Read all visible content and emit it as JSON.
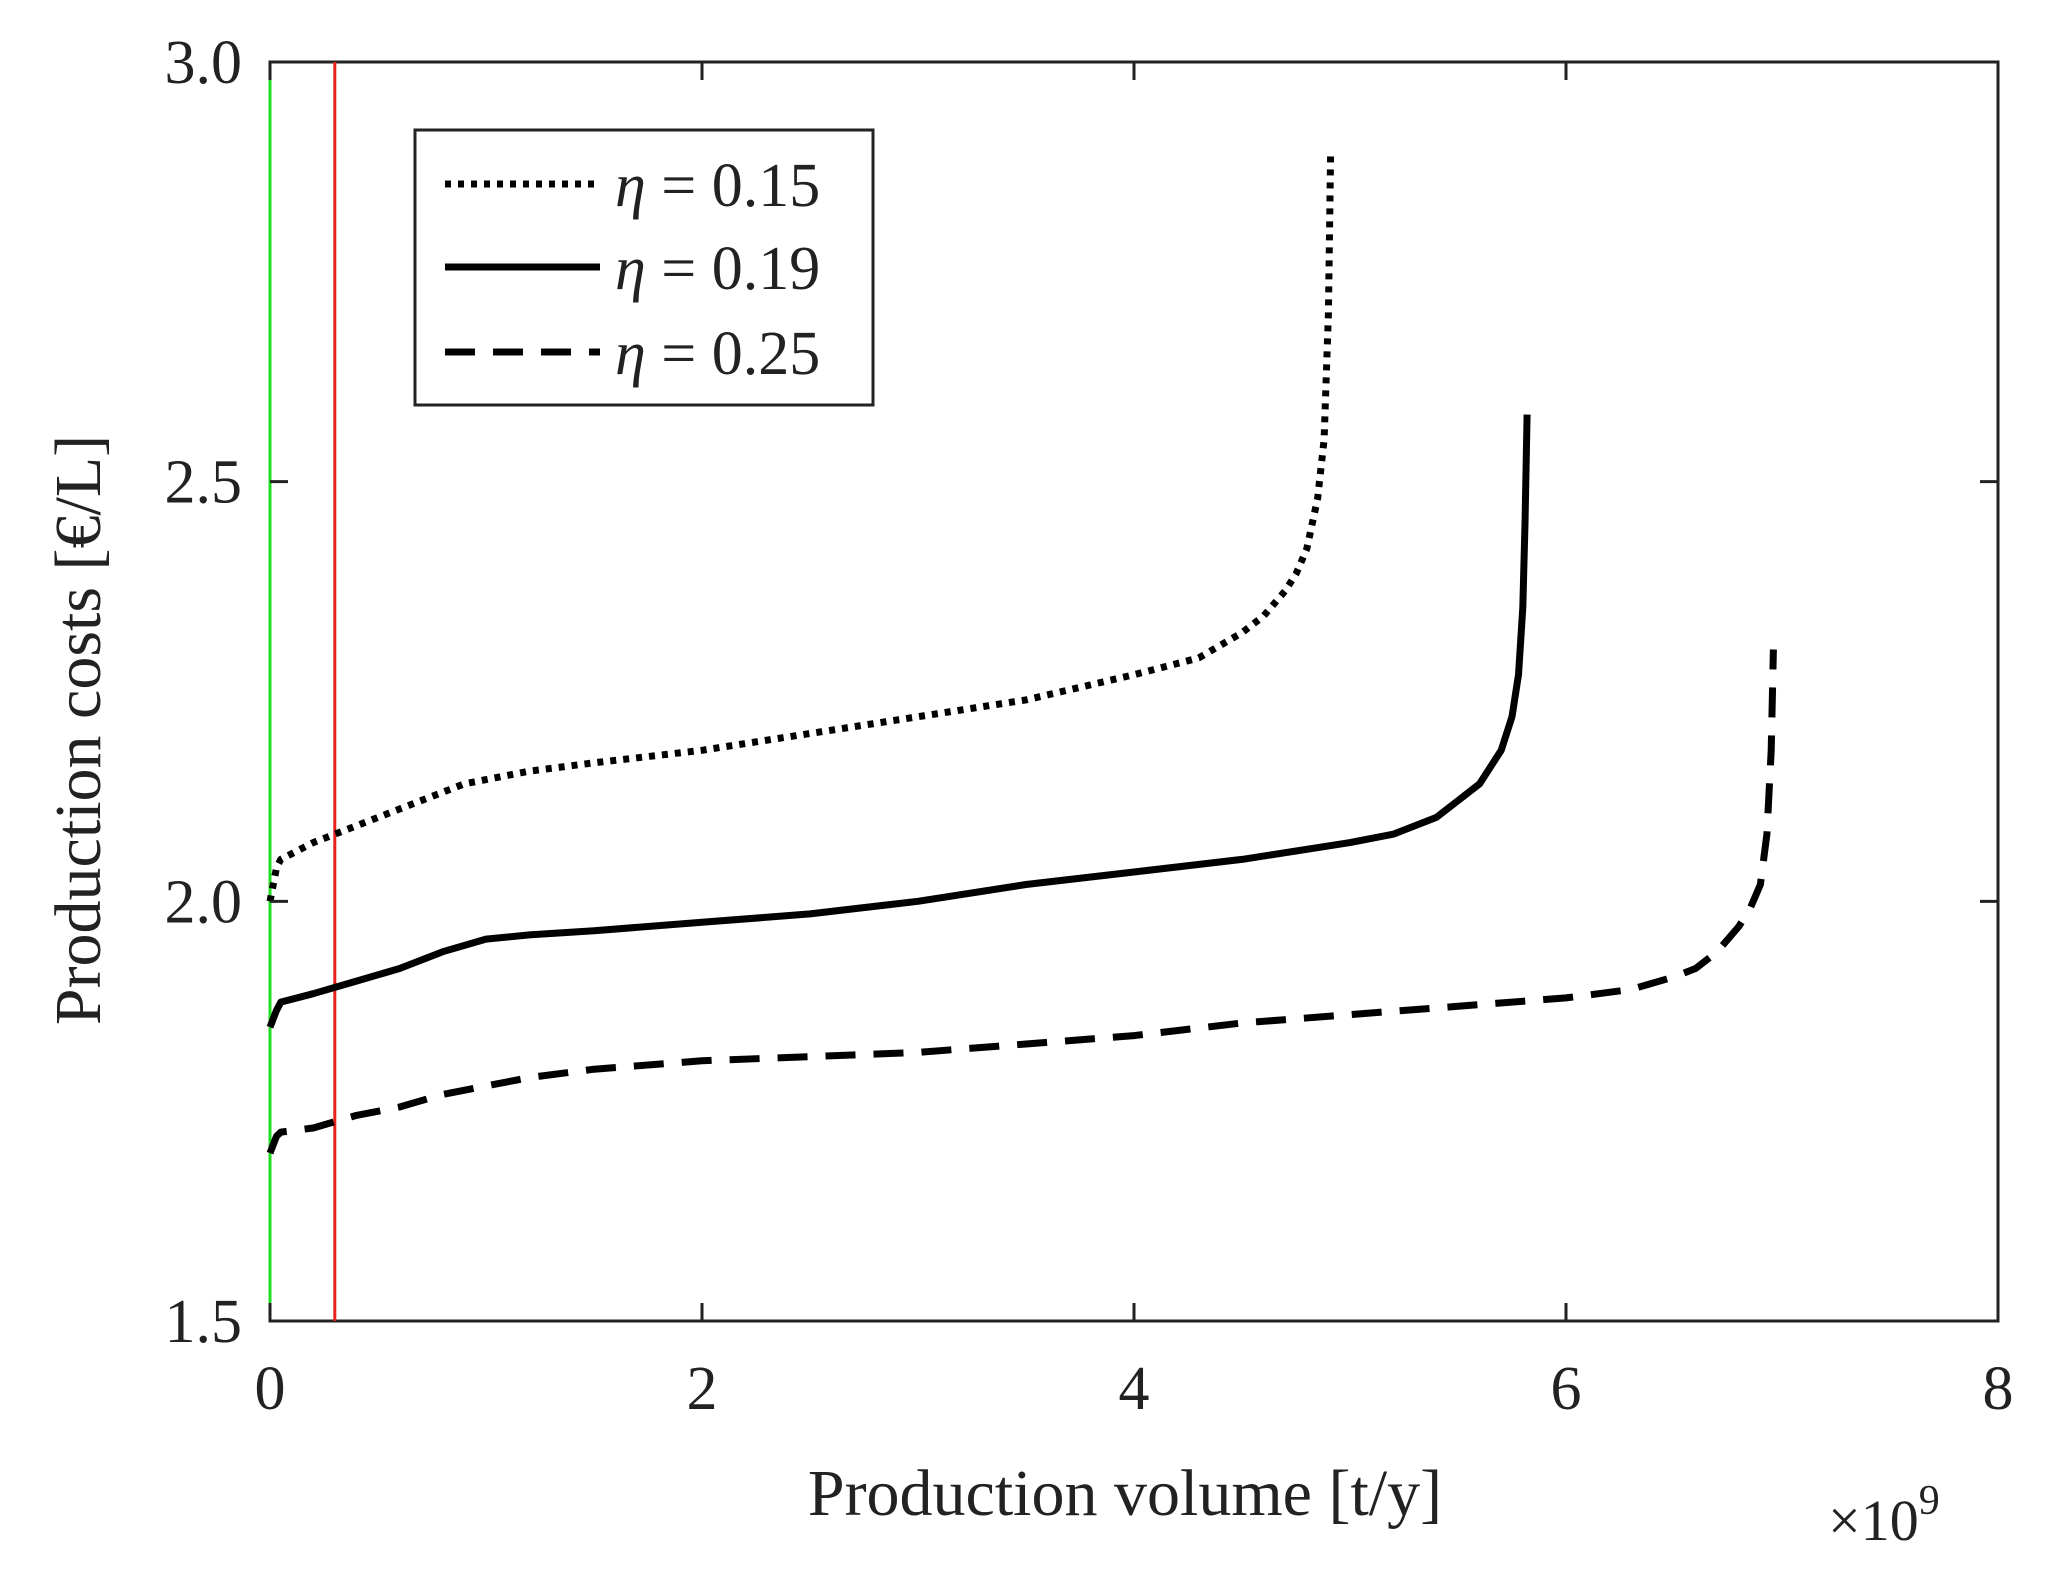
{
  "chart_data": {
    "type": "line",
    "title": "",
    "xlabel": "Production volume [t/y]",
    "ylabel": "Production costs [€/L]",
    "x_multiplier_label": "×10",
    "x_multiplier_exponent": "9",
    "xlim": [
      0,
      8
    ],
    "ylim": [
      1.5,
      3.0
    ],
    "x_ticks": [
      0,
      2,
      4,
      6,
      8
    ],
    "x_tick_labels": [
      "0",
      "2",
      "4",
      "6",
      "8"
    ],
    "y_ticks": [
      1.5,
      2.0,
      2.5,
      3.0
    ],
    "y_tick_labels": [
      "1.5",
      "2.0",
      "2.5",
      "3.0"
    ],
    "grid": false,
    "legend_position": "top-left",
    "vertical_lines": [
      {
        "name": "green-reference",
        "x": 0.0,
        "color": "#22dd22"
      },
      {
        "name": "red-reference",
        "x": 0.3,
        "color": "#e8221b"
      }
    ],
    "series": [
      {
        "name": "η = 0.15",
        "eta_symbol": "η",
        "eta_value": " = 0.15",
        "style": "dotted",
        "color": "#000000",
        "x": [
          0.0,
          0.03,
          0.05,
          0.2,
          0.4,
          0.6,
          0.8,
          0.9,
          1.0,
          1.2,
          1.5,
          2.0,
          2.5,
          3.0,
          3.5,
          4.0,
          4.3,
          4.5,
          4.6,
          4.7,
          4.75,
          4.8,
          4.85,
          4.88,
          4.9,
          4.91
        ],
        "y": [
          2.0,
          2.04,
          2.05,
          2.07,
          2.09,
          2.11,
          2.13,
          2.14,
          2.145,
          2.155,
          2.165,
          2.18,
          2.2,
          2.22,
          2.24,
          2.27,
          2.29,
          2.32,
          2.34,
          2.37,
          2.39,
          2.42,
          2.48,
          2.55,
          2.7,
          2.89
        ]
      },
      {
        "name": "η = 0.19",
        "eta_symbol": "η",
        "eta_value": " = 0.19",
        "style": "solid",
        "color": "#000000",
        "x": [
          0.0,
          0.03,
          0.05,
          0.2,
          0.4,
          0.6,
          0.8,
          1.0,
          1.2,
          1.5,
          2.0,
          2.5,
          3.0,
          3.5,
          4.0,
          4.5,
          5.0,
          5.2,
          5.4,
          5.5,
          5.6,
          5.7,
          5.75,
          5.78,
          5.8,
          5.81,
          5.82
        ],
        "y": [
          1.85,
          1.87,
          1.88,
          1.89,
          1.905,
          1.92,
          1.94,
          1.955,
          1.96,
          1.965,
          1.975,
          1.985,
          2.0,
          2.02,
          2.035,
          2.05,
          2.07,
          2.08,
          2.1,
          2.12,
          2.14,
          2.18,
          2.22,
          2.27,
          2.35,
          2.45,
          2.58
        ]
      },
      {
        "name": "η = 0.25",
        "eta_symbol": "η",
        "eta_value": " = 0.25",
        "style": "dashed",
        "color": "#000000",
        "x": [
          0.0,
          0.03,
          0.05,
          0.2,
          0.4,
          0.6,
          0.8,
          1.0,
          1.2,
          1.5,
          2.0,
          2.5,
          3.0,
          3.5,
          4.0,
          4.5,
          5.0,
          5.5,
          6.0,
          6.3,
          6.5,
          6.6,
          6.7,
          6.8,
          6.85,
          6.9,
          6.93,
          6.95,
          6.96
        ],
        "y": [
          1.7,
          1.72,
          1.725,
          1.73,
          1.745,
          1.755,
          1.77,
          1.78,
          1.79,
          1.8,
          1.81,
          1.815,
          1.82,
          1.83,
          1.84,
          1.855,
          1.865,
          1.875,
          1.885,
          1.895,
          1.91,
          1.92,
          1.94,
          1.97,
          1.99,
          2.02,
          2.08,
          2.18,
          2.3
        ]
      }
    ]
  }
}
